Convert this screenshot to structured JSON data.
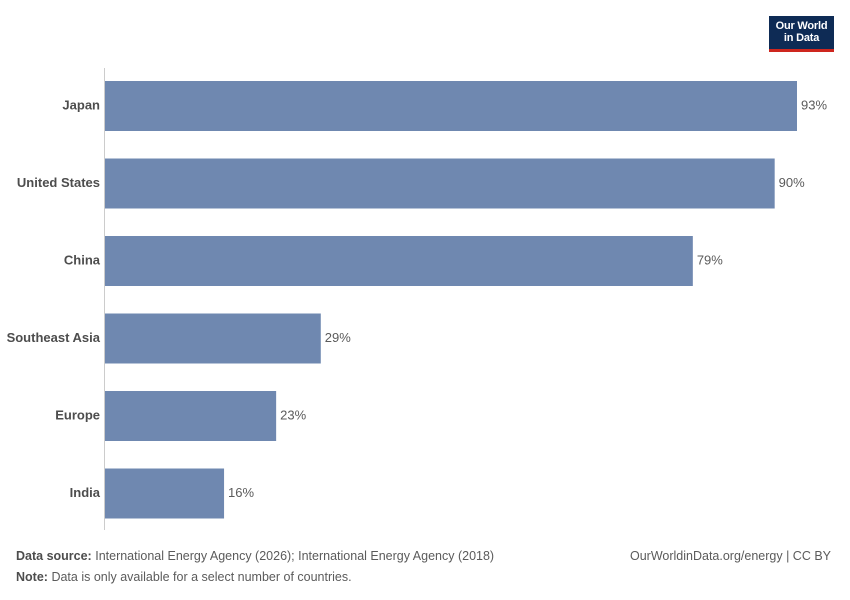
{
  "logo": {
    "line1": "Our World",
    "line2": "in Data",
    "bg_color": "#0e2b55",
    "accent_color": "#ce261e"
  },
  "chart_data": {
    "type": "bar",
    "orientation": "horizontal",
    "categories": [
      "Japan",
      "United States",
      "China",
      "Southeast Asia",
      "Europe",
      "India"
    ],
    "values": [
      93,
      90,
      79,
      29,
      23,
      16
    ],
    "value_labels": [
      "93%",
      "90%",
      "79%",
      "29%",
      "23%",
      "16%"
    ],
    "unit": "%",
    "xlim": [
      0,
      93
    ],
    "grid": false,
    "bar_color": "#6f88b0",
    "title": "",
    "xlabel": "",
    "ylabel": ""
  },
  "footer": {
    "source_label": "Data source:",
    "source_text": "International Energy Agency (2026); International Energy Agency (2018)",
    "note_label": "Note:",
    "note_text": "Data is only available for a select number of countries.",
    "link_text": "OurWorldinData.org/energy | CC BY"
  }
}
